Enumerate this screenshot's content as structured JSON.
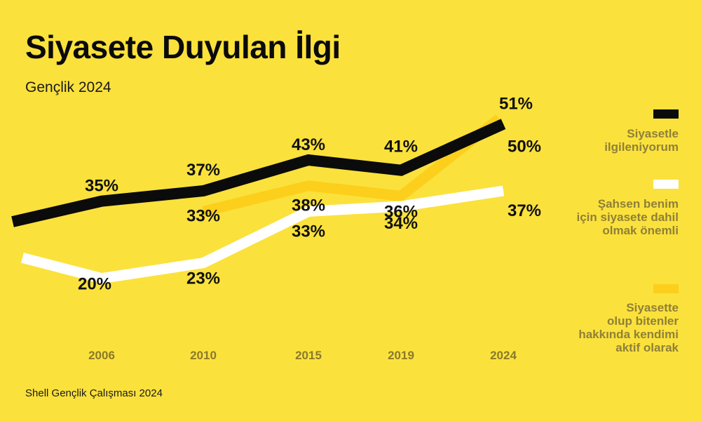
{
  "title": "Siyasete Duyulan İlgi",
  "subtitle": "Gençlik 2024",
  "source": "Shell Gençlik Çalışması 2024",
  "colors": {
    "background": "#fbe13c",
    "series_black": "#0b0b0b",
    "series_white": "#ffffff",
    "series_gold": "#fccf1c",
    "tick_text": "#8a7a2a",
    "legend_text": "#8f8037"
  },
  "chart_data": {
    "type": "line",
    "x": [
      "2006",
      "2010",
      "2015",
      "2019",
      "2024"
    ],
    "ylim": [
      10,
      55
    ],
    "grid": false,
    "legend_position": "right",
    "series": [
      {
        "name": "Siyasetle ilgileniyorum",
        "color": "#0b0b0b",
        "values": [
          35,
          37,
          43,
          41,
          50
        ],
        "labels": [
          "35%",
          "37%",
          "43%",
          "41%",
          "50%"
        ]
      },
      {
        "name": "Şahsen benim için siyasete dahil olmak önemli",
        "color": "#ffffff",
        "values": [
          20,
          23,
          33,
          34,
          37
        ],
        "labels": [
          "20%",
          "23%",
          "33%",
          "34%",
          "37%"
        ]
      },
      {
        "name": "Siyasette olup bitenler hakkında kendimi aktif olarak",
        "color": "#fccf1c",
        "values": [
          null,
          33,
          38,
          36,
          51
        ],
        "labels": [
          null,
          "33%",
          "38%",
          "36%",
          "51%"
        ]
      }
    ],
    "legend": [
      {
        "lines": [
          "Siyasetle",
          "ilgileniyorum"
        ]
      },
      {
        "lines": [
          "Şahsen benim",
          "için siyasete dahil",
          "olmak önemli"
        ]
      },
      {
        "lines": [
          "Siyasette",
          "olup bitenler",
          "hakkında kendimi",
          "aktif olarak"
        ]
      }
    ]
  }
}
